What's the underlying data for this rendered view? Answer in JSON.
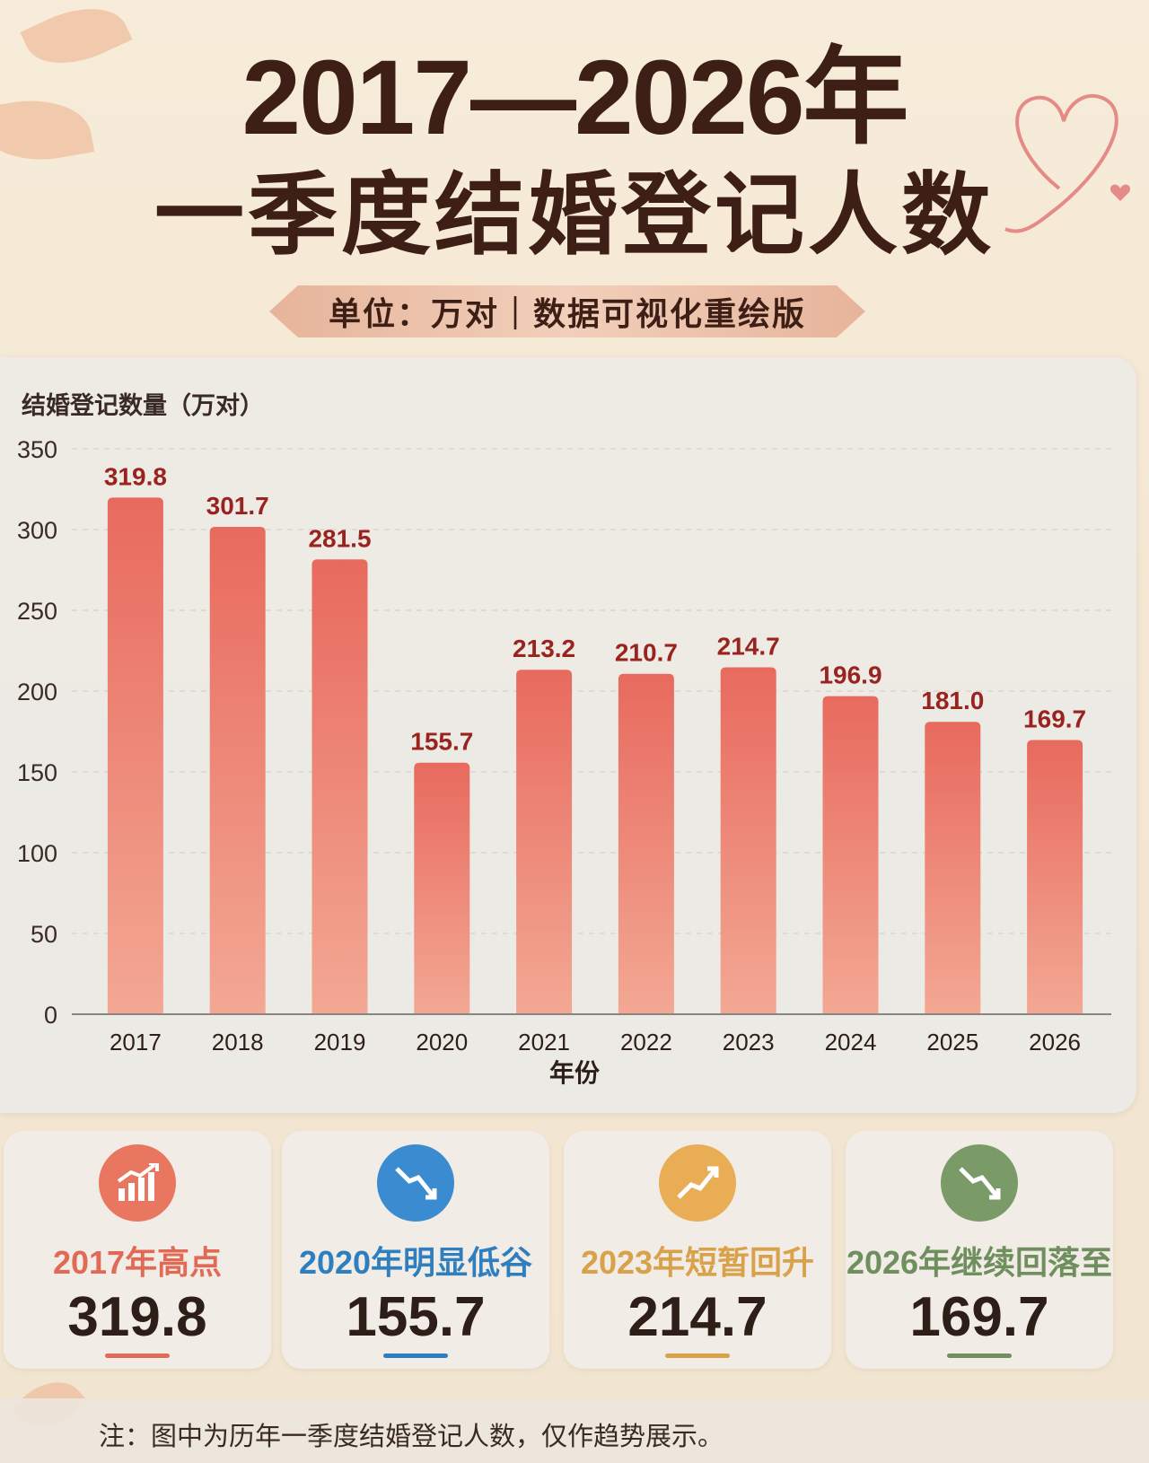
{
  "header": {
    "title_line1": "2017—2026年",
    "title_line2": "一季度结婚登记人数",
    "subtitle": "单位：万对｜数据可视化重绘版"
  },
  "chart_data": {
    "type": "bar",
    "ylabel": "结婚登记数量（万对）",
    "xlabel": "年份",
    "categories": [
      "2017",
      "2018",
      "2019",
      "2020",
      "2021",
      "2022",
      "2023",
      "2024",
      "2025",
      "2026"
    ],
    "values": [
      319.8,
      301.7,
      281.5,
      155.7,
      213.2,
      210.7,
      214.7,
      196.9,
      181.0,
      169.7
    ],
    "value_labels": [
      "319.8",
      "301.7",
      "281.5",
      "155.7",
      "213.2",
      "210.7",
      "214.7",
      "196.9",
      "181.0",
      "169.7"
    ],
    "yticks": [
      "0",
      "50",
      "100",
      "150",
      "200",
      "250",
      "300",
      "350"
    ],
    "ylim": [
      0,
      350
    ],
    "grid": true,
    "bar_color_top": "#e86a5e",
    "bar_color_bottom": "#f3a894",
    "label_color": "#9a2320"
  },
  "highlights": [
    {
      "label": "2017年高点",
      "value": "319.8",
      "color": "#e06a55",
      "icon": "chart-up-icon"
    },
    {
      "label": "2020年明显低谷",
      "value": "155.7",
      "color": "#2f7fc0",
      "icon": "trend-down-icon"
    },
    {
      "label": "2023年短暂回升",
      "value": "214.7",
      "color": "#d9a14a",
      "icon": "trend-up-icon"
    },
    {
      "label": "2026年继续回落至",
      "value": "169.7",
      "color": "#6f8f5f",
      "icon": "trend-down-icon"
    }
  ],
  "footer": {
    "note": "注：图中为历年一季度结婚登记人数，仅作趋势展示。"
  }
}
